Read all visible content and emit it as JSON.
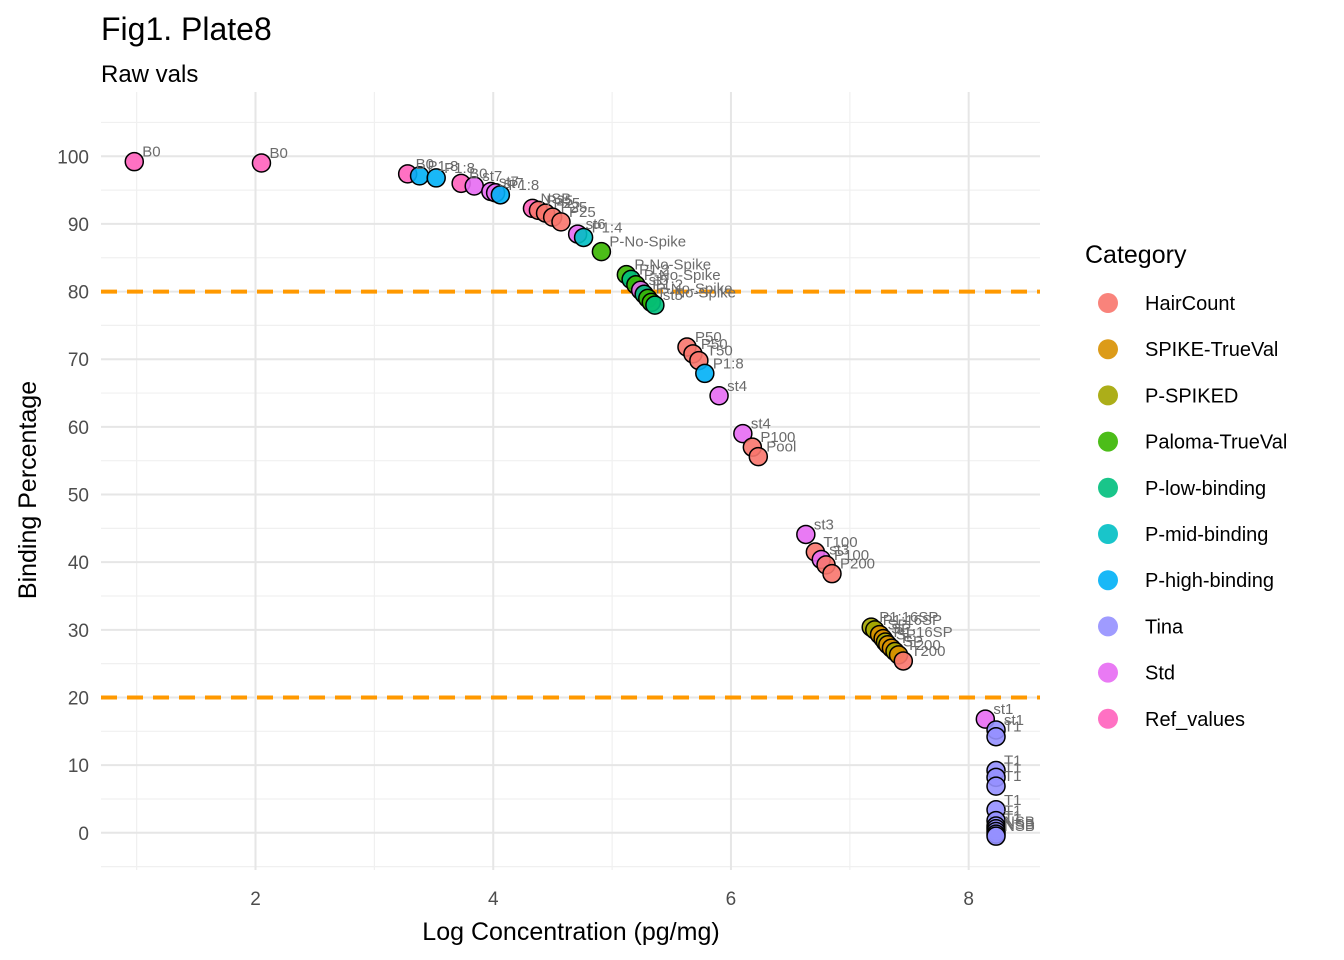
{
  "chart_data": {
    "type": "scatter",
    "title": "Fig1. Plate8",
    "subtitle": "Raw vals",
    "xlabel": "Log Concentration (pg/mg)",
    "ylabel": "Binding Percentage",
    "xlim": [
      0.7,
      8.6
    ],
    "ylim": [
      -5.5,
      109.5
    ],
    "x_ticks": [
      2,
      4,
      6,
      8
    ],
    "y_ticks": [
      0,
      10,
      20,
      30,
      40,
      50,
      60,
      70,
      80,
      90,
      100
    ],
    "grid": true,
    "reference_lines": [
      {
        "y": 80,
        "color": "#ff9900",
        "style": "dashed"
      },
      {
        "y": 20,
        "color": "#ff9900",
        "style": "dashed"
      }
    ],
    "legend": {
      "title": "Category",
      "placement": "right",
      "entries": [
        {
          "name": "HairCount",
          "color": "#F8766D"
        },
        {
          "name": "SPIKE-TrueVal",
          "color": "#D89000"
        },
        {
          "name": "P-SPIKED",
          "color": "#A3A500"
        },
        {
          "name": "Paloma-TrueVal",
          "color": "#39B600"
        },
        {
          "name": "P-low-binding",
          "color": "#00BF7D"
        },
        {
          "name": "P-mid-binding",
          "color": "#00BFC4"
        },
        {
          "name": "P-high-binding",
          "color": "#00B0F6"
        },
        {
          "name": "Tina",
          "color": "#9590FF"
        },
        {
          "name": "Std",
          "color": "#E76BF3"
        },
        {
          "name": "Ref_values",
          "color": "#FF62BC"
        }
      ]
    },
    "points": [
      {
        "x": 0.98,
        "y": 99.2,
        "category": "Ref_values",
        "label": "B0"
      },
      {
        "x": 2.05,
        "y": 99.0,
        "category": "Ref_values",
        "label": "B0"
      },
      {
        "x": 3.28,
        "y": 97.4,
        "category": "Ref_values",
        "label": "B0"
      },
      {
        "x": 3.38,
        "y": 97.1,
        "category": "P-high-binding",
        "label": "P1:8"
      },
      {
        "x": 3.52,
        "y": 96.8,
        "category": "P-high-binding",
        "label": "P1:8"
      },
      {
        "x": 3.73,
        "y": 96.0,
        "category": "Ref_values",
        "label": "B0"
      },
      {
        "x": 3.84,
        "y": 95.6,
        "category": "Std",
        "label": "st7"
      },
      {
        "x": 3.98,
        "y": 94.8,
        "category": "Std",
        "label": "st7"
      },
      {
        "x": 4.02,
        "y": 94.6,
        "category": "Std",
        "label": "st7"
      },
      {
        "x": 4.06,
        "y": 94.3,
        "category": "P-high-binding",
        "label": "P1:8"
      },
      {
        "x": 4.33,
        "y": 92.3,
        "category": "Ref_values",
        "label": "NSB"
      },
      {
        "x": 4.38,
        "y": 92.0,
        "category": "HairCount",
        "label": "P25"
      },
      {
        "x": 4.44,
        "y": 91.6,
        "category": "HairCount",
        "label": "P25"
      },
      {
        "x": 4.5,
        "y": 91.0,
        "category": "HairCount",
        "label": "P25"
      },
      {
        "x": 4.57,
        "y": 90.3,
        "category": "HairCount",
        "label": "P25"
      },
      {
        "x": 4.71,
        "y": 88.5,
        "category": "Std",
        "label": "st6"
      },
      {
        "x": 4.76,
        "y": 88.0,
        "category": "P-mid-binding",
        "label": "P1:4"
      },
      {
        "x": 4.91,
        "y": 85.9,
        "category": "Paloma-TrueVal",
        "label": "P-No-Spike"
      },
      {
        "x": 5.12,
        "y": 82.5,
        "category": "Paloma-TrueVal",
        "label": "P-No-Spike"
      },
      {
        "x": 5.16,
        "y": 81.8,
        "category": "P-low-binding",
        "label": "P1:2"
      },
      {
        "x": 5.2,
        "y": 81.0,
        "category": "Paloma-TrueVal",
        "label": "P-No-Spike"
      },
      {
        "x": 5.24,
        "y": 80.2,
        "category": "Std",
        "label": "st5"
      },
      {
        "x": 5.27,
        "y": 79.6,
        "category": "P-low-binding",
        "label": "P1:2"
      },
      {
        "x": 5.3,
        "y": 79.0,
        "category": "Paloma-TrueVal",
        "label": "P-No-Spike"
      },
      {
        "x": 5.33,
        "y": 78.4,
        "category": "Paloma-TrueVal",
        "label": "P-No-Spike"
      },
      {
        "x": 5.36,
        "y": 78.0,
        "category": "P-low-binding",
        "label": "st5"
      },
      {
        "x": 5.63,
        "y": 71.8,
        "category": "HairCount",
        "label": "P50"
      },
      {
        "x": 5.68,
        "y": 70.8,
        "category": "HairCount",
        "label": "P50"
      },
      {
        "x": 5.73,
        "y": 69.8,
        "category": "HairCount",
        "label": "T50"
      },
      {
        "x": 5.78,
        "y": 67.9,
        "category": "P-high-binding",
        "label": "P1:8"
      },
      {
        "x": 5.9,
        "y": 64.6,
        "category": "Std",
        "label": "st4"
      },
      {
        "x": 6.1,
        "y": 59.0,
        "category": "Std",
        "label": "st4"
      },
      {
        "x": 6.18,
        "y": 57.0,
        "category": "HairCount",
        "label": "P100"
      },
      {
        "x": 6.23,
        "y": 55.6,
        "category": "HairCount",
        "label": "Pool"
      },
      {
        "x": 6.63,
        "y": 44.1,
        "category": "Std",
        "label": "st3"
      },
      {
        "x": 6.71,
        "y": 41.5,
        "category": "HairCount",
        "label": "T100"
      },
      {
        "x": 6.76,
        "y": 40.4,
        "category": "Std",
        "label": "st3"
      },
      {
        "x": 6.8,
        "y": 39.6,
        "category": "HairCount",
        "label": "P100"
      },
      {
        "x": 6.85,
        "y": 38.3,
        "category": "HairCount",
        "label": "P200"
      },
      {
        "x": 7.18,
        "y": 30.4,
        "category": "P-SPIKED",
        "label": "P1:16SP"
      },
      {
        "x": 7.21,
        "y": 30.0,
        "category": "P-SPIKED",
        "label": "P1:16SP"
      },
      {
        "x": 7.25,
        "y": 29.3,
        "category": "SPIKE-TrueVal",
        "label": "SP"
      },
      {
        "x": 7.28,
        "y": 28.7,
        "category": "SPIKE-TrueVal",
        "label": "SP"
      },
      {
        "x": 7.3,
        "y": 28.2,
        "category": "P-SPIKED",
        "label": "P1:16SP"
      },
      {
        "x": 7.32,
        "y": 27.8,
        "category": "SPIKE-TrueVal",
        "label": "SP"
      },
      {
        "x": 7.35,
        "y": 27.3,
        "category": "SPIKE-TrueVal",
        "label": "T"
      },
      {
        "x": 7.38,
        "y": 26.8,
        "category": "P-SPIKED",
        "label": "SP"
      },
      {
        "x": 7.41,
        "y": 26.3,
        "category": "SPIKE-TrueVal",
        "label": "T200"
      },
      {
        "x": 7.45,
        "y": 25.4,
        "category": "HairCount",
        "label": "T200"
      },
      {
        "x": 8.14,
        "y": 16.8,
        "category": "Std",
        "label": "st1"
      },
      {
        "x": 8.23,
        "y": 15.2,
        "category": "Tina",
        "label": "st1"
      },
      {
        "x": 8.23,
        "y": 14.2,
        "category": "Tina",
        "label": "T1"
      },
      {
        "x": 8.23,
        "y": 9.2,
        "category": "Tina",
        "label": "T1"
      },
      {
        "x": 8.23,
        "y": 8.2,
        "category": "Tina",
        "label": "T1"
      },
      {
        "x": 8.23,
        "y": 6.9,
        "category": "Tina",
        "label": "T1"
      },
      {
        "x": 8.23,
        "y": 3.4,
        "category": "Tina",
        "label": "T1"
      },
      {
        "x": 8.23,
        "y": 1.8,
        "category": "Tina",
        "label": "T1"
      },
      {
        "x": 8.23,
        "y": 1.0,
        "category": "Tina",
        "label": "T1"
      },
      {
        "x": 8.23,
        "y": 0.6,
        "category": "Tina",
        "label": "T1"
      },
      {
        "x": 8.23,
        "y": 0.2,
        "category": "Tina",
        "label": "NSB"
      },
      {
        "x": 8.23,
        "y": -0.2,
        "category": "Tina",
        "label": "NSB"
      },
      {
        "x": 8.23,
        "y": -0.5,
        "category": "Tina",
        "label": "NSB"
      }
    ]
  }
}
